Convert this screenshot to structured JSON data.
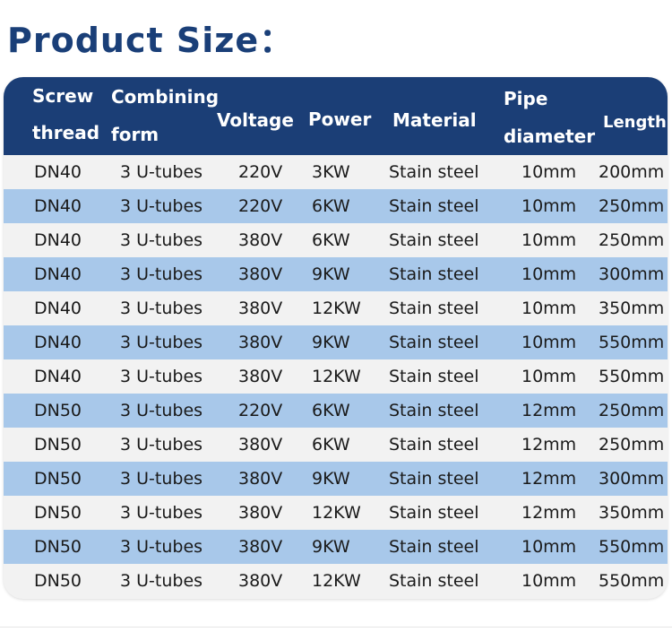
{
  "title": "Product Size：",
  "headers": {
    "screw_line1": "Screw",
    "screw_line2": "thread",
    "combining_line1": "Combining",
    "combining_line2": "form",
    "voltage": "Voltage",
    "power": "Power",
    "material": "Material",
    "pipe_line1": "Pipe",
    "pipe_line2": "diameter",
    "length": "Length"
  },
  "rows": [
    [
      "DN40",
      "3 U-tubes",
      "220V",
      "3KW",
      "Stain steel",
      "10mm",
      "200mm"
    ],
    [
      "DN40",
      "3 U-tubes",
      "220V",
      "6KW",
      "Stain steel",
      "10mm",
      "250mm"
    ],
    [
      "DN40",
      "3 U-tubes",
      "380V",
      "6KW",
      "Stain steel",
      "10mm",
      "250mm"
    ],
    [
      "DN40",
      "3 U-tubes",
      "380V",
      "9KW",
      "Stain steel",
      "10mm",
      "300mm"
    ],
    [
      "DN40",
      "3 U-tubes",
      "380V",
      "12KW",
      "Stain steel",
      "10mm",
      "350mm"
    ],
    [
      "DN40",
      "3 U-tubes",
      "380V",
      "9KW",
      "Stain steel",
      "10mm",
      "550mm"
    ],
    [
      "DN40",
      "3 U-tubes",
      "380V",
      "12KW",
      "Stain steel",
      "10mm",
      "550mm"
    ],
    [
      "DN50",
      "3 U-tubes",
      "220V",
      "6KW",
      "Stain steel",
      "12mm",
      "250mm"
    ],
    [
      "DN50",
      "3 U-tubes",
      "380V",
      "6KW",
      "Stain steel",
      "12mm",
      "250mm"
    ],
    [
      "DN50",
      "3 U-tubes",
      "380V",
      "9KW",
      "Stain steel",
      "12mm",
      "300mm"
    ],
    [
      "DN50",
      "3 U-tubes",
      "380V",
      "12KW",
      "Stain steel",
      "12mm",
      "350mm"
    ],
    [
      "DN50",
      "3 U-tubes",
      "380V",
      "9KW",
      "Stain steel",
      "10mm",
      "550mm"
    ],
    [
      "DN50",
      "3 U-tubes",
      "380V",
      "12KW",
      "Stain steel",
      "10mm",
      "550mm"
    ]
  ],
  "colors": {
    "header_bg": "#1b3e76",
    "row_light": "#f2f2f2",
    "row_blue": "#a8c8ea",
    "title": "#1a3f78"
  }
}
